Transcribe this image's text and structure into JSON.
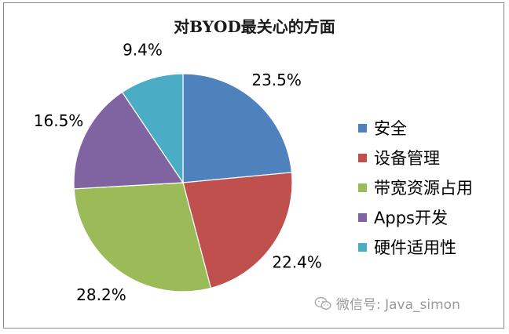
{
  "chart_data": {
    "type": "pie",
    "title": "对BYOD最关心的方面",
    "categories": [
      "安全",
      "设备管理",
      "带宽资源占用",
      "Apps开发",
      "硬件适用性"
    ],
    "values": [
      23.5,
      22.4,
      28.2,
      16.5,
      9.4
    ],
    "data_labels": [
      "23.5%",
      "22.4%",
      "28.2%",
      "16.5%",
      "9.4%"
    ],
    "colors": [
      "#4F81BD",
      "#C0504D",
      "#9BBB59",
      "#8064A2",
      "#4BACC6"
    ],
    "legend_position": "right",
    "start_angle": "12 o'clock",
    "direction": "clockwise"
  },
  "watermark": {
    "icon": "wechat-icon",
    "text": "微信号: Java_simon"
  }
}
